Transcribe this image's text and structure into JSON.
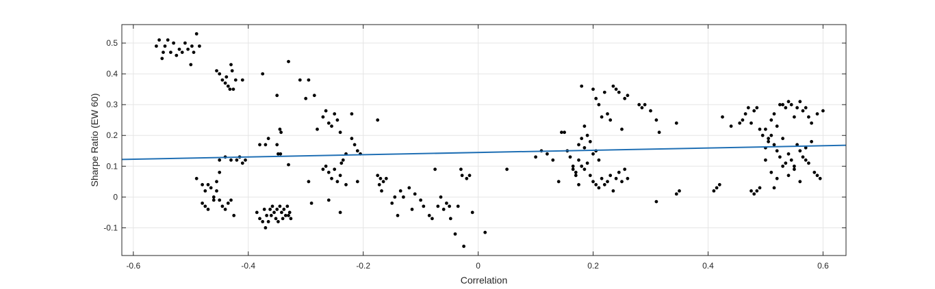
{
  "chart_data": {
    "type": "scatter",
    "title": "",
    "xlabel": "Correlation",
    "ylabel": "Sharpe Ratio (EW 60)",
    "xlim": [
      -0.62,
      0.64
    ],
    "ylim": [
      -0.19,
      0.56
    ],
    "xticks": [
      -0.6,
      -0.4,
      -0.2,
      0,
      0.2,
      0.4,
      0.6
    ],
    "xtick_labels": [
      "-0.6",
      "-0.4",
      "-0.2",
      "0",
      "0.2",
      "0.4",
      "0.6"
    ],
    "yticks": [
      -0.1,
      0,
      0.1,
      0.2,
      0.3,
      0.4,
      0.5
    ],
    "ytick_labels": [
      "-0.1",
      "0",
      "0.1",
      "0.2",
      "0.3",
      "0.4",
      "0.5"
    ],
    "grid": true,
    "colors": {
      "points": "#000000",
      "fit_line": "#1f6fb4",
      "grid": "#e5e5e5",
      "axes": "#262626"
    },
    "fit_line": {
      "x": [
        -0.62,
        0.64
      ],
      "y": [
        0.122,
        0.168
      ]
    },
    "points": [
      [
        -0.56,
        0.49
      ],
      [
        -0.555,
        0.51
      ],
      [
        -0.55,
        0.45
      ],
      [
        -0.548,
        0.47
      ],
      [
        -0.545,
        0.49
      ],
      [
        -0.54,
        0.51
      ],
      [
        -0.535,
        0.47
      ],
      [
        -0.53,
        0.5
      ],
      [
        -0.525,
        0.46
      ],
      [
        -0.52,
        0.48
      ],
      [
        -0.515,
        0.47
      ],
      [
        -0.51,
        0.5
      ],
      [
        -0.505,
        0.48
      ],
      [
        -0.5,
        0.43
      ],
      [
        -0.498,
        0.49
      ],
      [
        -0.495,
        0.47
      ],
      [
        -0.49,
        0.53
      ],
      [
        -0.485,
        0.49
      ],
      [
        -0.455,
        0.41
      ],
      [
        -0.45,
        0.4
      ],
      [
        -0.445,
        0.38
      ],
      [
        -0.44,
        0.37
      ],
      [
        -0.438,
        0.39
      ],
      [
        -0.435,
        0.36
      ],
      [
        -0.432,
        0.35
      ],
      [
        -0.43,
        0.43
      ],
      [
        -0.428,
        0.41
      ],
      [
        -0.426,
        0.35
      ],
      [
        -0.422,
        0.38
      ],
      [
        -0.41,
        0.38
      ],
      [
        -0.38,
        0.17
      ],
      [
        -0.37,
        0.17
      ],
      [
        -0.365,
        0.19
      ],
      [
        -0.375,
        0.4
      ],
      [
        -0.35,
        0.33
      ],
      [
        -0.345,
        0.22
      ],
      [
        -0.343,
        0.21
      ],
      [
        -0.35,
        0.17
      ],
      [
        -0.348,
        0.14
      ],
      [
        -0.344,
        0.14
      ],
      [
        -0.33,
        0.44
      ],
      [
        -0.33,
        0.105
      ],
      [
        -0.45,
        0.12
      ],
      [
        -0.44,
        0.13
      ],
      [
        -0.43,
        0.12
      ],
      [
        -0.42,
        0.12
      ],
      [
        -0.415,
        0.13
      ],
      [
        -0.41,
        0.11
      ],
      [
        -0.405,
        0.12
      ],
      [
        -0.49,
        0.06
      ],
      [
        -0.48,
        0.04
      ],
      [
        -0.475,
        0.02
      ],
      [
        -0.47,
        0.04
      ],
      [
        -0.465,
        0.03
      ],
      [
        -0.46,
        0.0
      ],
      [
        -0.455,
        0.02
      ],
      [
        -0.45,
        0.08
      ],
      [
        -0.48,
        -0.02
      ],
      [
        -0.475,
        -0.03
      ],
      [
        -0.47,
        -0.04
      ],
      [
        -0.46,
        -0.01
      ],
      [
        -0.455,
        0.05
      ],
      [
        -0.45,
        -0.01
      ],
      [
        -0.445,
        -0.03
      ],
      [
        -0.44,
        -0.04
      ],
      [
        -0.435,
        -0.02
      ],
      [
        -0.43,
        -0.01
      ],
      [
        -0.425,
        -0.06
      ],
      [
        -0.385,
        -0.05
      ],
      [
        -0.38,
        -0.07
      ],
      [
        -0.375,
        -0.08
      ],
      [
        -0.372,
        -0.04
      ],
      [
        -0.37,
        -0.1
      ],
      [
        -0.368,
        -0.06
      ],
      [
        -0.365,
        -0.08
      ],
      [
        -0.362,
        -0.04
      ],
      [
        -0.36,
        -0.06
      ],
      [
        -0.358,
        -0.03
      ],
      [
        -0.355,
        -0.05
      ],
      [
        -0.352,
        -0.07
      ],
      [
        -0.35,
        -0.04
      ],
      [
        -0.348,
        -0.08
      ],
      [
        -0.345,
        -0.03
      ],
      [
        -0.342,
        -0.05
      ],
      [
        -0.34,
        -0.07
      ],
      [
        -0.338,
        -0.04
      ],
      [
        -0.335,
        -0.06
      ],
      [
        -0.332,
        -0.03
      ],
      [
        -0.33,
        -0.06
      ],
      [
        -0.328,
        -0.05
      ],
      [
        -0.326,
        -0.07
      ],
      [
        -0.31,
        0.38
      ],
      [
        -0.3,
        0.32
      ],
      [
        -0.295,
        0.38
      ],
      [
        -0.285,
        0.33
      ],
      [
        -0.28,
        0.22
      ],
      [
        -0.27,
        0.26
      ],
      [
        -0.265,
        0.28
      ],
      [
        -0.26,
        0.24
      ],
      [
        -0.255,
        0.23
      ],
      [
        -0.25,
        0.27
      ],
      [
        -0.245,
        0.25
      ],
      [
        -0.24,
        0.21
      ],
      [
        -0.23,
        0.14
      ],
      [
        -0.22,
        0.27
      ],
      [
        -0.22,
        0.19
      ],
      [
        -0.215,
        0.17
      ],
      [
        -0.21,
        0.15
      ],
      [
        -0.205,
        0.14
      ],
      [
        -0.295,
        0.05
      ],
      [
        -0.29,
        -0.02
      ],
      [
        -0.27,
        0.09
      ],
      [
        -0.265,
        0.1
      ],
      [
        -0.26,
        0.08
      ],
      [
        -0.255,
        0.06
      ],
      [
        -0.25,
        0.09
      ],
      [
        -0.245,
        0.05
      ],
      [
        -0.24,
        0.07
      ],
      [
        -0.238,
        0.11
      ],
      [
        -0.235,
        0.12
      ],
      [
        -0.23,
        0.04
      ],
      [
        -0.26,
        -0.01
      ],
      [
        -0.24,
        -0.05
      ],
      [
        -0.21,
        0.05
      ],
      [
        -0.175,
        0.25
      ],
      [
        -0.175,
        0.07
      ],
      [
        -0.172,
        0.04
      ],
      [
        -0.17,
        0.06
      ],
      [
        -0.168,
        0.02
      ],
      [
        -0.165,
        0.05
      ],
      [
        -0.16,
        0.06
      ],
      [
        -0.15,
        -0.02
      ],
      [
        -0.145,
        0.0
      ],
      [
        -0.14,
        -0.06
      ],
      [
        -0.135,
        0.02
      ],
      [
        -0.13,
        0.0
      ],
      [
        -0.12,
        0.03
      ],
      [
        -0.115,
        -0.04
      ],
      [
        -0.11,
        0.01
      ],
      [
        -0.1,
        -0.01
      ],
      [
        -0.095,
        -0.03
      ],
      [
        -0.085,
        -0.06
      ],
      [
        -0.08,
        -0.07
      ],
      [
        -0.075,
        0.09
      ],
      [
        -0.07,
        -0.03
      ],
      [
        -0.065,
        0.0
      ],
      [
        -0.06,
        -0.04
      ],
      [
        -0.055,
        -0.02
      ],
      [
        -0.05,
        -0.03
      ],
      [
        -0.048,
        -0.07
      ],
      [
        -0.04,
        -0.12
      ],
      [
        -0.035,
        -0.03
      ],
      [
        -0.03,
        0.09
      ],
      [
        -0.028,
        0.07
      ],
      [
        -0.025,
        -0.16
      ],
      [
        -0.02,
        0.06
      ],
      [
        -0.015,
        0.07
      ],
      [
        -0.01,
        -0.05
      ],
      [
        0.012,
        -0.115
      ],
      [
        0.05,
        0.09
      ],
      [
        0.1,
        0.13
      ],
      [
        0.11,
        0.15
      ],
      [
        0.12,
        0.14
      ],
      [
        0.13,
        0.12
      ],
      [
        0.14,
        0.05
      ],
      [
        0.145,
        0.21
      ],
      [
        0.15,
        0.21
      ],
      [
        0.155,
        0.15
      ],
      [
        0.16,
        0.13
      ],
      [
        0.165,
        0.09
      ],
      [
        0.17,
        0.07
      ],
      [
        0.175,
        0.04
      ],
      [
        0.18,
        0.36
      ],
      [
        0.185,
        0.23
      ],
      [
        0.175,
        0.17
      ],
      [
        0.18,
        0.19
      ],
      [
        0.185,
        0.16
      ],
      [
        0.19,
        0.2
      ],
      [
        0.195,
        0.18
      ],
      [
        0.2,
        0.14
      ],
      [
        0.205,
        0.15
      ],
      [
        0.21,
        0.12
      ],
      [
        0.2,
        0.35
      ],
      [
        0.205,
        0.32
      ],
      [
        0.21,
        0.3
      ],
      [
        0.215,
        0.26
      ],
      [
        0.22,
        0.34
      ],
      [
        0.225,
        0.27
      ],
      [
        0.23,
        0.25
      ],
      [
        0.235,
        0.36
      ],
      [
        0.24,
        0.35
      ],
      [
        0.245,
        0.34
      ],
      [
        0.25,
        0.22
      ],
      [
        0.255,
        0.32
      ],
      [
        0.26,
        0.33
      ],
      [
        0.165,
        0.1
      ],
      [
        0.17,
        0.08
      ],
      [
        0.175,
        0.12
      ],
      [
        0.18,
        0.1
      ],
      [
        0.185,
        0.09
      ],
      [
        0.19,
        0.11
      ],
      [
        0.195,
        0.07
      ],
      [
        0.2,
        0.05
      ],
      [
        0.205,
        0.04
      ],
      [
        0.21,
        0.03
      ],
      [
        0.215,
        0.06
      ],
      [
        0.22,
        0.04
      ],
      [
        0.225,
        0.05
      ],
      [
        0.23,
        0.07
      ],
      [
        0.235,
        0.02
      ],
      [
        0.24,
        0.06
      ],
      [
        0.245,
        0.08
      ],
      [
        0.25,
        0.05
      ],
      [
        0.255,
        0.09
      ],
      [
        0.26,
        0.06
      ],
      [
        0.28,
        0.3
      ],
      [
        0.285,
        0.29
      ],
      [
        0.29,
        0.3
      ],
      [
        0.3,
        0.28
      ],
      [
        0.31,
        0.25
      ],
      [
        0.315,
        0.21
      ],
      [
        0.31,
        -0.015
      ],
      [
        0.345,
        0.24
      ],
      [
        0.345,
        0.01
      ],
      [
        0.35,
        0.02
      ],
      [
        0.41,
        0.02
      ],
      [
        0.415,
        0.03
      ],
      [
        0.42,
        0.04
      ],
      [
        0.425,
        0.26
      ],
      [
        0.44,
        0.23
      ],
      [
        0.455,
        0.24
      ],
      [
        0.46,
        0.25
      ],
      [
        0.465,
        0.27
      ],
      [
        0.47,
        0.29
      ],
      [
        0.475,
        0.24
      ],
      [
        0.48,
        0.28
      ],
      [
        0.485,
        0.29
      ],
      [
        0.49,
        0.22
      ],
      [
        0.495,
        0.2
      ],
      [
        0.5,
        0.22
      ],
      [
        0.505,
        0.19
      ],
      [
        0.51,
        0.25
      ],
      [
        0.515,
        0.27
      ],
      [
        0.52,
        0.23
      ],
      [
        0.525,
        0.3
      ],
      [
        0.53,
        0.3
      ],
      [
        0.535,
        0.29
      ],
      [
        0.54,
        0.31
      ],
      [
        0.545,
        0.3
      ],
      [
        0.55,
        0.26
      ],
      [
        0.555,
        0.29
      ],
      [
        0.56,
        0.31
      ],
      [
        0.565,
        0.28
      ],
      [
        0.57,
        0.29
      ],
      [
        0.575,
        0.26
      ],
      [
        0.58,
        0.24
      ],
      [
        0.59,
        0.27
      ],
      [
        0.6,
        0.28
      ],
      [
        0.5,
        0.16
      ],
      [
        0.505,
        0.18
      ],
      [
        0.51,
        0.2
      ],
      [
        0.515,
        0.17
      ],
      [
        0.52,
        0.15
      ],
      [
        0.525,
        0.13
      ],
      [
        0.53,
        0.19
      ],
      [
        0.535,
        0.11
      ],
      [
        0.54,
        0.14
      ],
      [
        0.545,
        0.12
      ],
      [
        0.55,
        0.09
      ],
      [
        0.555,
        0.17
      ],
      [
        0.56,
        0.15
      ],
      [
        0.565,
        0.13
      ],
      [
        0.57,
        0.16
      ],
      [
        0.575,
        0.11
      ],
      [
        0.58,
        0.18
      ],
      [
        0.585,
        0.08
      ],
      [
        0.59,
        0.07
      ],
      [
        0.595,
        0.06
      ],
      [
        0.48,
        0.01
      ],
      [
        0.485,
        0.02
      ],
      [
        0.49,
        0.03
      ],
      [
        0.5,
        0.12
      ],
      [
        0.51,
        0.08
      ],
      [
        0.52,
        0.06
      ],
      [
        0.53,
        0.1
      ],
      [
        0.54,
        0.07
      ],
      [
        0.55,
        0.1
      ],
      [
        0.56,
        0.05
      ],
      [
        0.57,
        0.12
      ],
      [
        0.475,
        0.02
      ],
      [
        0.515,
        0.03
      ]
    ]
  }
}
